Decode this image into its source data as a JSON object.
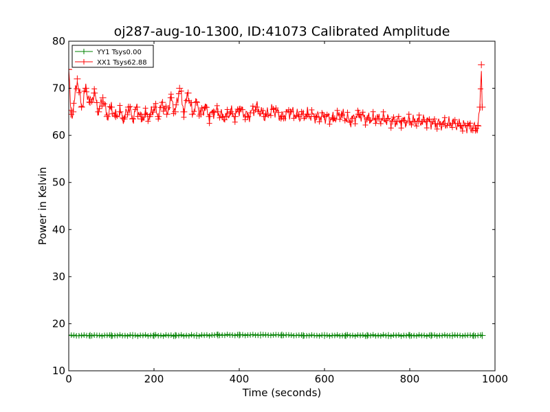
{
  "chart_data": {
    "type": "line",
    "title": "oj287-aug-10-1300, ID:41073 Calibrated Amplitude",
    "xlabel": "Time (seconds)",
    "ylabel": "Power in Kelvin",
    "xlim": [
      0,
      1000
    ],
    "ylim": [
      10,
      80
    ],
    "xticks": [
      0,
      200,
      400,
      600,
      800,
      1000
    ],
    "yticks": [
      10,
      20,
      30,
      40,
      50,
      60,
      70,
      80
    ],
    "grid": false,
    "legend_position": "top-left",
    "marker": "plus",
    "series": [
      {
        "name": "YY1 Tsys0.00",
        "color": "#008000",
        "x": [
          0,
          50,
          100,
          150,
          200,
          250,
          300,
          350,
          400,
          450,
          500,
          550,
          600,
          650,
          700,
          750,
          800,
          850,
          900,
          950,
          970
        ],
        "y": [
          17.5,
          17.5,
          17.5,
          17.5,
          17.5,
          17.5,
          17.5,
          17.6,
          17.6,
          17.6,
          17.6,
          17.5,
          17.5,
          17.5,
          17.5,
          17.5,
          17.5,
          17.5,
          17.5,
          17.5,
          17.5
        ]
      },
      {
        "name": "XX1 Tsys62.88",
        "color": "#ff0000",
        "x": [
          0,
          5,
          10,
          20,
          30,
          40,
          50,
          60,
          70,
          80,
          90,
          100,
          110,
          120,
          130,
          140,
          150,
          160,
          170,
          180,
          190,
          200,
          210,
          220,
          230,
          240,
          250,
          260,
          270,
          280,
          290,
          300,
          310,
          320,
          330,
          340,
          350,
          360,
          370,
          380,
          390,
          400,
          420,
          440,
          460,
          480,
          500,
          520,
          540,
          560,
          580,
          600,
          620,
          640,
          660,
          680,
          700,
          720,
          740,
          760,
          780,
          800,
          820,
          840,
          860,
          880,
          900,
          920,
          940,
          955,
          960,
          965,
          968,
          970
        ],
        "y": [
          74,
          64.5,
          65,
          72,
          66,
          70,
          67,
          69,
          65,
          68,
          64,
          66,
          64,
          65,
          63.5,
          66,
          63.5,
          66,
          63.5,
          64.5,
          64,
          66,
          64,
          67,
          64.5,
          68,
          65,
          70,
          65,
          69,
          64.5,
          67,
          64.5,
          66,
          64,
          65,
          65,
          64,
          64,
          65,
          64,
          65.5,
          64,
          66,
          64,
          65.5,
          64,
          65,
          64,
          64.5,
          64,
          64,
          63.5,
          64.5,
          63,
          64.5,
          63.5,
          63.5,
          63.5,
          63,
          63,
          63,
          63,
          63,
          62.5,
          62.5,
          62.5,
          62,
          62,
          61.5,
          62,
          66,
          75,
          66
        ]
      }
    ]
  }
}
